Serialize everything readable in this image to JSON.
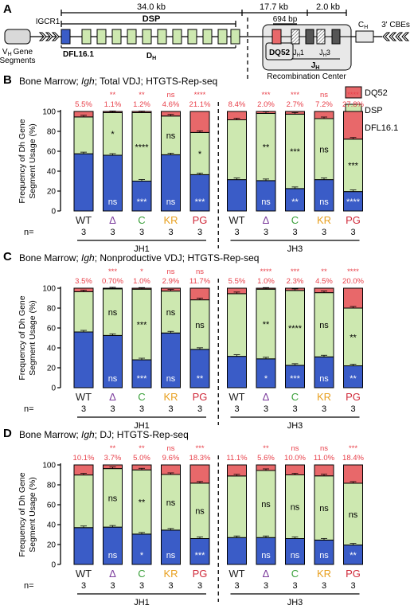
{
  "colors": {
    "dq52": "#e8686a",
    "dsp": "#cde8b0",
    "dfl": "#3a5cc7",
    "sig_red": "#e8404a",
    "geno": {
      "WT": "#222222",
      "Δ": "#7b3b9c",
      "C": "#3aa03a",
      "KR": "#e8a020",
      "PG": "#d02a3a"
    }
  },
  "panel_a": {
    "letter": "A",
    "dims": {
      "d34": "34.0 kb",
      "d17": "17.7 kb",
      "d20": "2.0 kb",
      "d694": "694 bp"
    },
    "labels": {
      "dsp": "DSP",
      "igcr1": "IGCR1",
      "vh1": "V",
      "vh_sub": "H",
      "vh2": "Gene",
      "vh3": "Segments",
      "dfl": "DFL16.1",
      "dh": "D",
      "dh_sub": "H",
      "dq52": "DQ52",
      "jh1": "J",
      "jh1_sub": "H",
      "jh1_num": "1",
      "jh3": "J",
      "jh3_sub": "H",
      "jh3_num": "3",
      "jh": "J",
      "jh_sub": "H",
      "rc": "Recombination Center",
      "ch": "C",
      "ch_sub": "H",
      "cbe": "3' CBEs"
    }
  },
  "legend": [
    {
      "key": "dq52",
      "label": "DQ52"
    },
    {
      "key": "dsp",
      "label": "DSP"
    },
    {
      "key": "dfl",
      "label": "DFL16.1"
    }
  ],
  "chart_data": [
    {
      "panel": "B",
      "type": "bar",
      "stacked": true,
      "title": "Bone Marrow; Igh; Total VDJ; HTGTS-Rep-seq",
      "ylabel": "Frequency of Dh Gene Segment Usage (%)",
      "ylim": [
        0,
        100
      ],
      "yticks": [
        0,
        20,
        40,
        60,
        80,
        100
      ],
      "categories": [
        "WT",
        "Δ",
        "C",
        "KR",
        "PG",
        "WT",
        "Δ",
        "C",
        "KR",
        "PG"
      ],
      "groups": [
        {
          "label": "JH1",
          "n": 5
        },
        {
          "label": "JH3",
          "n": 5
        }
      ],
      "n": [
        "3",
        "3",
        "3",
        "3",
        "3",
        "3",
        "3",
        "3",
        "3",
        "3"
      ],
      "series": [
        {
          "name": "DFL16.1",
          "values": [
            57.5,
            56.0,
            30.0,
            56.5,
            36.5,
            31.5,
            30.5,
            22.5,
            31.5,
            19.5
          ]
        },
        {
          "name": "DSP",
          "values": [
            37.0,
            42.9,
            68.8,
            38.9,
            42.4,
            60.1,
            67.5,
            74.8,
            61.3,
            52.7
          ]
        },
        {
          "name": "DQ52",
          "values": [
            5.5,
            1.1,
            1.2,
            4.6,
            21.1,
            8.4,
            2.0,
            2.7,
            7.2,
            27.8
          ]
        }
      ],
      "dq52_labels": [
        "5.5%",
        "1.1%",
        "1.2%",
        "4.6%",
        "21.1%",
        "8.4%",
        "2.0%",
        "2.7%",
        "7.2%",
        "27.8%"
      ],
      "dq52_sig": [
        "",
        "**",
        "**",
        "ns",
        "****",
        "",
        "***",
        "***",
        "ns",
        "****"
      ],
      "dsp_sig": [
        "",
        "*",
        "****",
        "ns",
        "*",
        "",
        "**",
        "***",
        "ns",
        "***"
      ],
      "dfl_sig": [
        "",
        "ns",
        "***",
        "ns",
        "***",
        "",
        "ns",
        "**",
        "ns",
        "****"
      ]
    },
    {
      "panel": "C",
      "type": "bar",
      "stacked": true,
      "title": "Bone Marrow; Igh; Nonproductive VDJ; HTGTS-Rep-seq",
      "ylabel": "Frequency of Dh Gene Segment Usage (%)",
      "ylim": [
        0,
        100
      ],
      "yticks": [
        0,
        20,
        40,
        60,
        80,
        100
      ],
      "categories": [
        "WT",
        "Δ",
        "C",
        "KR",
        "PG",
        "WT",
        "Δ",
        "C",
        "KR",
        "PG"
      ],
      "groups": [
        {
          "label": "JH1",
          "n": 5
        },
        {
          "label": "JH3",
          "n": 5
        }
      ],
      "n": [
        "3",
        "3",
        "3",
        "3",
        "3",
        "3",
        "3",
        "3",
        "3",
        "3"
      ],
      "series": [
        {
          "name": "DFL16.1",
          "values": [
            56.0,
            52.5,
            28.0,
            55.0,
            38.5,
            31.5,
            29.0,
            22.5,
            31.0,
            22.0
          ]
        },
        {
          "name": "DSP",
          "values": [
            40.5,
            46.8,
            71.0,
            42.1,
            49.8,
            63.0,
            70.0,
            75.2,
            64.5,
            58.0
          ]
        },
        {
          "name": "DQ52",
          "values": [
            3.5,
            0.7,
            1.0,
            2.9,
            11.7,
            5.5,
            1.0,
            2.3,
            4.5,
            20.0
          ]
        }
      ],
      "dq52_labels": [
        "3.5%",
        "0.70%",
        "1.0%",
        "2.9%",
        "11.7%",
        "5.5%",
        "1.0%",
        "2.3%",
        "4.5%",
        "20.0%"
      ],
      "dq52_sig": [
        "",
        "***",
        "*",
        "ns",
        "ns",
        "",
        "****",
        "***",
        "**",
        "****"
      ],
      "dsp_sig": [
        "",
        "ns",
        "***",
        "ns",
        "ns",
        "",
        "**",
        "****",
        "ns",
        "**"
      ],
      "dfl_sig": [
        "",
        "ns",
        "***",
        "ns",
        "**",
        "",
        "*",
        "***",
        "ns",
        "**"
      ]
    },
    {
      "panel": "D",
      "type": "bar",
      "stacked": true,
      "title": "Bone Marrow; Igh; DJ; HTGTS-Rep-seq",
      "ylabel": "Frequency of Dh Gene Segment Usage (%)",
      "ylim": [
        0,
        100
      ],
      "yticks": [
        0,
        20,
        40,
        60,
        80,
        100
      ],
      "categories": [
        "WT",
        "Δ",
        "C",
        "KR",
        "PG",
        "WT",
        "Δ",
        "C",
        "KR",
        "PG"
      ],
      "groups": [
        {
          "label": "JH1",
          "n": 5
        },
        {
          "label": "JH3",
          "n": 5
        }
      ],
      "n": [
        "3",
        "3",
        "3",
        "3",
        "3",
        "3",
        "3",
        "3",
        "3",
        "3"
      ],
      "series": [
        {
          "name": "DFL16.1",
          "values": [
            37.0,
            37.5,
            30.5,
            34.5,
            26.0,
            27.0,
            27.0,
            26.0,
            24.5,
            19.5
          ]
        },
        {
          "name": "DSP",
          "values": [
            52.9,
            58.8,
            64.5,
            55.9,
            55.7,
            61.9,
            67.4,
            64.0,
            64.5,
            62.1
          ]
        },
        {
          "name": "DQ52",
          "values": [
            10.1,
            3.7,
            5.0,
            9.6,
            18.3,
            11.1,
            5.6,
            10.0,
            11.0,
            18.4
          ]
        }
      ],
      "dq52_labels": [
        "10.1%",
        "3.7%",
        "5.0%",
        "9.6%",
        "18.3%",
        "11.1%",
        "5.6%",
        "10.0%",
        "11.0%",
        "18.4%"
      ],
      "dq52_sig": [
        "",
        "**",
        "**",
        "ns",
        "***",
        "",
        "**",
        "ns",
        "ns",
        "***"
      ],
      "dsp_sig": [
        "",
        "ns",
        "**",
        "ns",
        "ns",
        "",
        "ns",
        "ns",
        "ns",
        "ns"
      ],
      "dfl_sig": [
        "",
        "ns",
        "*",
        "ns",
        "***",
        "",
        "ns",
        "ns",
        "ns",
        "**"
      ]
    }
  ],
  "axis": {
    "n_label": "n="
  }
}
